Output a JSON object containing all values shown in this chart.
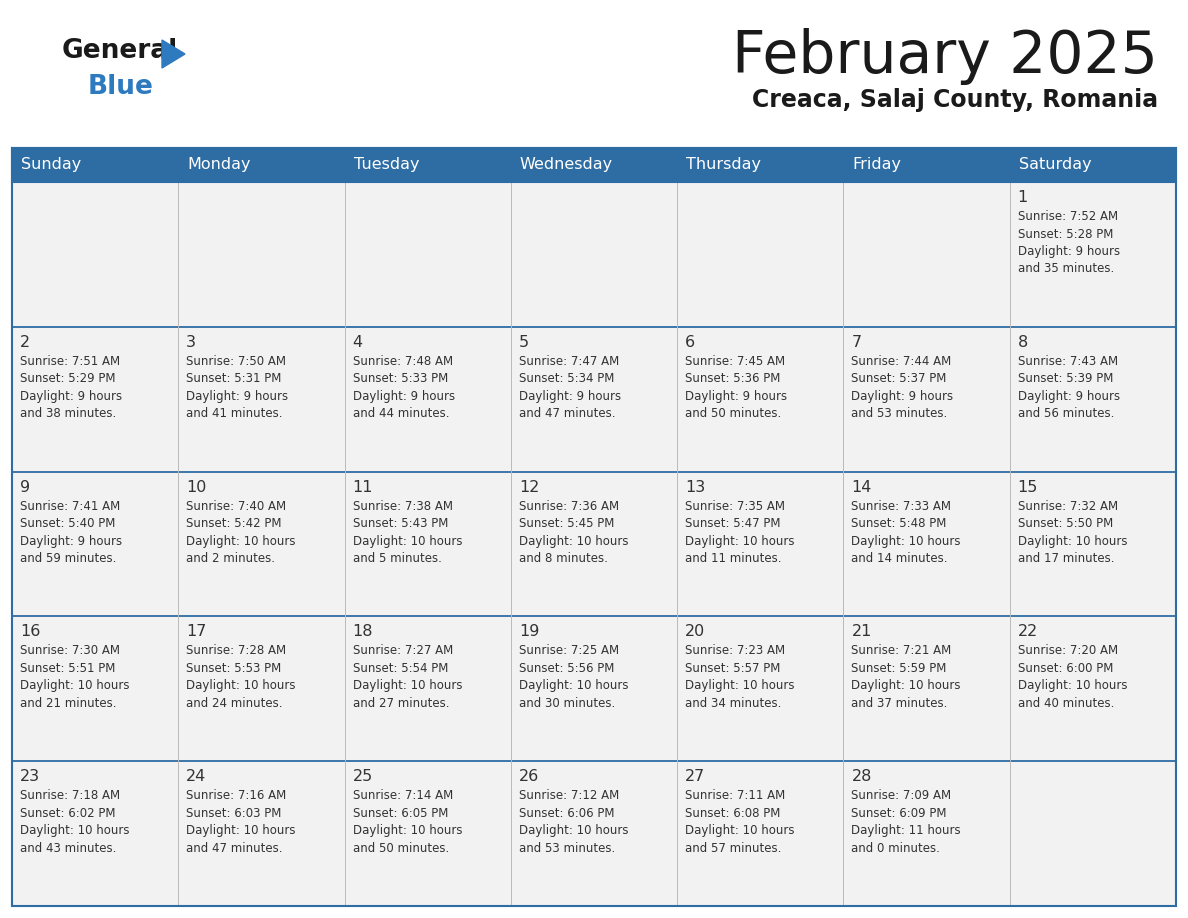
{
  "title": "February 2025",
  "subtitle": "Creaca, Salaj County, Romania",
  "header_bg": "#2e6da4",
  "header_text": "#ffffff",
  "cell_bg": "#f2f2f2",
  "border_color": "#2e6da4",
  "text_color": "#333333",
  "days_of_week": [
    "Sunday",
    "Monday",
    "Tuesday",
    "Wednesday",
    "Thursday",
    "Friday",
    "Saturday"
  ],
  "weeks": [
    [
      {
        "day": null,
        "info": null
      },
      {
        "day": null,
        "info": null
      },
      {
        "day": null,
        "info": null
      },
      {
        "day": null,
        "info": null
      },
      {
        "day": null,
        "info": null
      },
      {
        "day": null,
        "info": null
      },
      {
        "day": "1",
        "info": "Sunrise: 7:52 AM\nSunset: 5:28 PM\nDaylight: 9 hours\nand 35 minutes."
      }
    ],
    [
      {
        "day": "2",
        "info": "Sunrise: 7:51 AM\nSunset: 5:29 PM\nDaylight: 9 hours\nand 38 minutes."
      },
      {
        "day": "3",
        "info": "Sunrise: 7:50 AM\nSunset: 5:31 PM\nDaylight: 9 hours\nand 41 minutes."
      },
      {
        "day": "4",
        "info": "Sunrise: 7:48 AM\nSunset: 5:33 PM\nDaylight: 9 hours\nand 44 minutes."
      },
      {
        "day": "5",
        "info": "Sunrise: 7:47 AM\nSunset: 5:34 PM\nDaylight: 9 hours\nand 47 minutes."
      },
      {
        "day": "6",
        "info": "Sunrise: 7:45 AM\nSunset: 5:36 PM\nDaylight: 9 hours\nand 50 minutes."
      },
      {
        "day": "7",
        "info": "Sunrise: 7:44 AM\nSunset: 5:37 PM\nDaylight: 9 hours\nand 53 minutes."
      },
      {
        "day": "8",
        "info": "Sunrise: 7:43 AM\nSunset: 5:39 PM\nDaylight: 9 hours\nand 56 minutes."
      }
    ],
    [
      {
        "day": "9",
        "info": "Sunrise: 7:41 AM\nSunset: 5:40 PM\nDaylight: 9 hours\nand 59 minutes."
      },
      {
        "day": "10",
        "info": "Sunrise: 7:40 AM\nSunset: 5:42 PM\nDaylight: 10 hours\nand 2 minutes."
      },
      {
        "day": "11",
        "info": "Sunrise: 7:38 AM\nSunset: 5:43 PM\nDaylight: 10 hours\nand 5 minutes."
      },
      {
        "day": "12",
        "info": "Sunrise: 7:36 AM\nSunset: 5:45 PM\nDaylight: 10 hours\nand 8 minutes."
      },
      {
        "day": "13",
        "info": "Sunrise: 7:35 AM\nSunset: 5:47 PM\nDaylight: 10 hours\nand 11 minutes."
      },
      {
        "day": "14",
        "info": "Sunrise: 7:33 AM\nSunset: 5:48 PM\nDaylight: 10 hours\nand 14 minutes."
      },
      {
        "day": "15",
        "info": "Sunrise: 7:32 AM\nSunset: 5:50 PM\nDaylight: 10 hours\nand 17 minutes."
      }
    ],
    [
      {
        "day": "16",
        "info": "Sunrise: 7:30 AM\nSunset: 5:51 PM\nDaylight: 10 hours\nand 21 minutes."
      },
      {
        "day": "17",
        "info": "Sunrise: 7:28 AM\nSunset: 5:53 PM\nDaylight: 10 hours\nand 24 minutes."
      },
      {
        "day": "18",
        "info": "Sunrise: 7:27 AM\nSunset: 5:54 PM\nDaylight: 10 hours\nand 27 minutes."
      },
      {
        "day": "19",
        "info": "Sunrise: 7:25 AM\nSunset: 5:56 PM\nDaylight: 10 hours\nand 30 minutes."
      },
      {
        "day": "20",
        "info": "Sunrise: 7:23 AM\nSunset: 5:57 PM\nDaylight: 10 hours\nand 34 minutes."
      },
      {
        "day": "21",
        "info": "Sunrise: 7:21 AM\nSunset: 5:59 PM\nDaylight: 10 hours\nand 37 minutes."
      },
      {
        "day": "22",
        "info": "Sunrise: 7:20 AM\nSunset: 6:00 PM\nDaylight: 10 hours\nand 40 minutes."
      }
    ],
    [
      {
        "day": "23",
        "info": "Sunrise: 7:18 AM\nSunset: 6:02 PM\nDaylight: 10 hours\nand 43 minutes."
      },
      {
        "day": "24",
        "info": "Sunrise: 7:16 AM\nSunset: 6:03 PM\nDaylight: 10 hours\nand 47 minutes."
      },
      {
        "day": "25",
        "info": "Sunrise: 7:14 AM\nSunset: 6:05 PM\nDaylight: 10 hours\nand 50 minutes."
      },
      {
        "day": "26",
        "info": "Sunrise: 7:12 AM\nSunset: 6:06 PM\nDaylight: 10 hours\nand 53 minutes."
      },
      {
        "day": "27",
        "info": "Sunrise: 7:11 AM\nSunset: 6:08 PM\nDaylight: 10 hours\nand 57 minutes."
      },
      {
        "day": "28",
        "info": "Sunrise: 7:09 AM\nSunset: 6:09 PM\nDaylight: 11 hours\nand 0 minutes."
      },
      {
        "day": null,
        "info": null
      }
    ]
  ]
}
